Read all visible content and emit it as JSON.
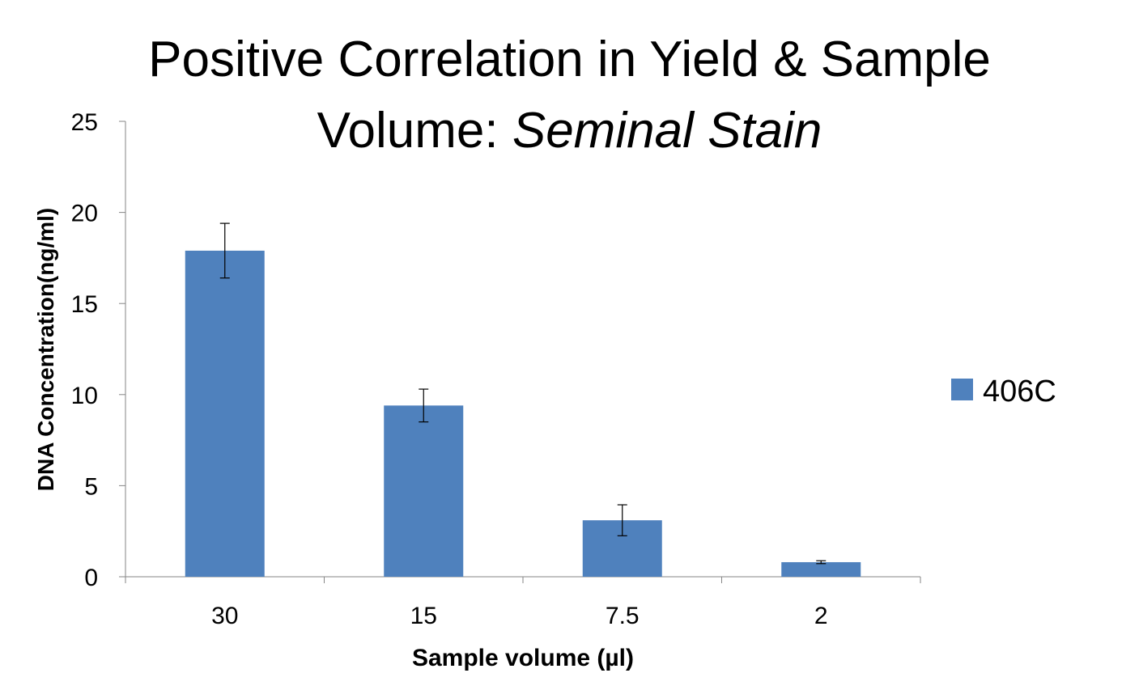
{
  "chart_data": {
    "type": "bar",
    "title": "Positive Correlation in Yield & Sample",
    "title_line2_plain": "Volume: ",
    "title_line2_italic": "Seminal Stain",
    "xlabel": "Sample volume (µl)",
    "ylabel": "DNA Concentration(ng/ml)",
    "categories": [
      "30",
      "15",
      "7.5",
      "2"
    ],
    "series": [
      {
        "name": "406C",
        "color": "#4f81bd",
        "values": [
          17.9,
          9.4,
          3.1,
          0.8
        ],
        "error": [
          1.5,
          0.9,
          0.85,
          0.08
        ]
      }
    ],
    "ylim": [
      0,
      25
    ],
    "yticks": [
      "0",
      "5",
      "10",
      "15",
      "20",
      "25"
    ],
    "grid": false,
    "legend_position": "right"
  }
}
